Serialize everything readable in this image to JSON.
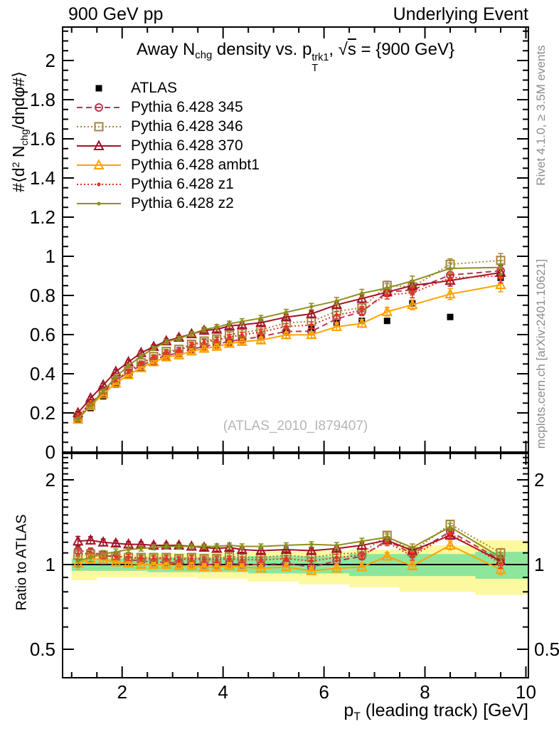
{
  "header": {
    "left": "900 GeV pp",
    "right": "Underlying Event"
  },
  "labels": {
    "title_parts": [
      {
        "t": "Away N"
      },
      {
        "t": "chg",
        "s": "sub"
      },
      {
        "t": " density vs. p"
      },
      {
        "s": "stack",
        "sup": "trk1",
        "sub": "T"
      },
      {
        "t": ", "
      },
      {
        "t": "s",
        "s": "sqrt"
      },
      {
        "t": " = {900 GeV}"
      }
    ],
    "ylabel_parts": [
      {
        "t": "#⟨d"
      },
      {
        "t": "2",
        "s": "sup"
      },
      {
        "t": " N"
      },
      {
        "t": "chg",
        "s": "sub"
      },
      {
        "t": "/dηdφ#⟩"
      }
    ],
    "xlabel_parts": [
      {
        "t": "p"
      },
      {
        "t": "T",
        "s": "sub"
      },
      {
        "t": " (leading track) [GeV]"
      }
    ],
    "ratio_label": "Ratio to ATLAS",
    "watermark": "(ATLAS_2010_I879407)"
  },
  "side_notes": {
    "top": "Rivet 4.1.0, ≥ 3.5M events",
    "bottom": "mcplots.cern.ch [arXiv:2401.10621]"
  },
  "chart_data": {
    "type": "line",
    "title": "Away N_chg density vs. p_T^trk1, sqrt(s) = {900 GeV}",
    "xlabel": "p_T (leading track) [GeV]",
    "ylabel": "#<d2 N_chg/detadphi#>",
    "ratio_label": "Ratio to ATLAS",
    "xlim": [
      0.82,
      10.05
    ],
    "ylim": [
      0,
      2.17
    ],
    "ratio_ylim": [
      0.4,
      2.48
    ],
    "ratio_scale": "log",
    "grid": false,
    "x_ticks": [
      2,
      4,
      6,
      8,
      10
    ],
    "y_ticks": [
      0,
      0.2,
      0.4,
      0.6,
      0.8,
      1,
      1.2,
      1.4,
      1.6,
      1.8,
      2
    ],
    "ratio_ticks": [
      0.5,
      1,
      2
    ],
    "x": [
      1.125,
      1.375,
      1.625,
      1.875,
      2.125,
      2.375,
      2.625,
      2.875,
      3.125,
      3.375,
      3.625,
      3.875,
      4.125,
      4.375,
      4.75,
      5.25,
      5.75,
      6.25,
      6.75,
      7.25,
      7.75,
      8.5,
      9.5
    ],
    "err": [
      0.008,
      0.008,
      0.009,
      0.009,
      0.01,
      0.01,
      0.01,
      0.011,
      0.011,
      0.012,
      0.012,
      0.013,
      0.013,
      0.014,
      0.014,
      0.015,
      0.016,
      0.018,
      0.02,
      0.022,
      0.025,
      0.028,
      0.035
    ],
    "series": [
      {
        "name": "ATLAS",
        "color": "#000000",
        "marker": "square-filled",
        "line": "none",
        "values": [
          0.165,
          0.225,
          0.285,
          0.345,
          0.39,
          0.43,
          0.46,
          0.485,
          0.5,
          0.52,
          0.54,
          0.55,
          0.56,
          0.575,
          0.59,
          0.61,
          0.63,
          0.66,
          0.67,
          0.67,
          0.76,
          0.69,
          0.89
        ]
      },
      {
        "name": "Pythia 6.428 345",
        "color": "#b23a52",
        "marker": "circle-open",
        "line": "dashed",
        "values": [
          0.185,
          0.25,
          0.308,
          0.366,
          0.406,
          0.443,
          0.469,
          0.495,
          0.505,
          0.525,
          0.54,
          0.55,
          0.566,
          0.575,
          0.59,
          0.616,
          0.617,
          0.68,
          0.717,
          0.817,
          0.828,
          0.904,
          0.926
        ],
        "ratio": [
          1.12,
          1.11,
          1.08,
          1.06,
          1.04,
          1.03,
          1.02,
          1.02,
          1.01,
          1.01,
          1.0,
          1.0,
          1.01,
          1.0,
          1.0,
          1.01,
          0.98,
          1.03,
          1.07,
          1.22,
          1.09,
          1.31,
          1.04
        ]
      },
      {
        "name": "Pythia 6.428 346",
        "color": "#a5853c",
        "marker": "square-open",
        "line": "dotted",
        "values": [
          0.178,
          0.245,
          0.308,
          0.369,
          0.413,
          0.456,
          0.488,
          0.514,
          0.525,
          0.551,
          0.567,
          0.578,
          0.599,
          0.61,
          0.625,
          0.659,
          0.668,
          0.719,
          0.737,
          0.851,
          0.844,
          0.959,
          0.979
        ],
        "ratio": [
          1.08,
          1.09,
          1.08,
          1.07,
          1.06,
          1.06,
          1.06,
          1.06,
          1.05,
          1.06,
          1.05,
          1.05,
          1.07,
          1.06,
          1.06,
          1.08,
          1.06,
          1.09,
          1.1,
          1.27,
          1.11,
          1.39,
          1.1
        ]
      },
      {
        "name": "Pythia 6.428 370",
        "color": "#a31226",
        "marker": "triangle-open",
        "line": "solid",
        "values": [
          0.2,
          0.275,
          0.342,
          0.411,
          0.46,
          0.507,
          0.538,
          0.567,
          0.585,
          0.603,
          0.621,
          0.627,
          0.644,
          0.65,
          0.661,
          0.689,
          0.706,
          0.752,
          0.784,
          0.817,
          0.851,
          0.876,
          0.917
        ],
        "ratio": [
          1.21,
          1.22,
          1.2,
          1.19,
          1.18,
          1.18,
          1.17,
          1.17,
          1.17,
          1.16,
          1.15,
          1.14,
          1.15,
          1.13,
          1.12,
          1.13,
          1.12,
          1.14,
          1.17,
          1.22,
          1.12,
          1.27,
          1.03
        ]
      },
      {
        "name": "Pythia 6.428 ambt1",
        "color": "#ffa202",
        "marker": "triangle-open",
        "line": "solid",
        "values": [
          0.167,
          0.236,
          0.296,
          0.352,
          0.394,
          0.43,
          0.46,
          0.485,
          0.495,
          0.515,
          0.529,
          0.539,
          0.554,
          0.564,
          0.572,
          0.598,
          0.599,
          0.64,
          0.657,
          0.717,
          0.752,
          0.807,
          0.854
        ],
        "ratio": [
          1.01,
          1.05,
          1.04,
          1.02,
          1.01,
          1.0,
          1.0,
          1.0,
          0.99,
          0.99,
          0.98,
          0.98,
          0.99,
          0.98,
          0.97,
          0.98,
          0.95,
          0.97,
          0.98,
          1.07,
          0.99,
          1.17,
          0.96
        ]
      },
      {
        "name": "Pythia 6.428 z1",
        "color": "#e63322",
        "marker": "dot-filled",
        "line": "dotted",
        "values": [
          0.18,
          0.248,
          0.308,
          0.369,
          0.413,
          0.452,
          0.483,
          0.509,
          0.52,
          0.546,
          0.562,
          0.572,
          0.588,
          0.598,
          0.614,
          0.641,
          0.649,
          0.7,
          0.724,
          0.804,
          0.813,
          0.89,
          0.899
        ],
        "ratio": [
          1.09,
          1.1,
          1.08,
          1.07,
          1.06,
          1.05,
          1.05,
          1.05,
          1.04,
          1.05,
          1.04,
          1.04,
          1.05,
          1.04,
          1.04,
          1.05,
          1.03,
          1.06,
          1.08,
          1.2,
          1.07,
          1.29,
          1.01
        ]
      },
      {
        "name": "Pythia 6.428 z2",
        "color": "#8f8f1f",
        "marker": "dot-filled",
        "line": "solid",
        "values": [
          0.17,
          0.239,
          0.311,
          0.383,
          0.441,
          0.49,
          0.529,
          0.563,
          0.58,
          0.603,
          0.626,
          0.638,
          0.655,
          0.667,
          0.684,
          0.714,
          0.743,
          0.772,
          0.811,
          0.838,
          0.874,
          0.938,
          0.943
        ],
        "ratio": [
          1.03,
          1.06,
          1.09,
          1.11,
          1.13,
          1.14,
          1.15,
          1.16,
          1.16,
          1.16,
          1.16,
          1.16,
          1.17,
          1.16,
          1.16,
          1.17,
          1.18,
          1.17,
          1.21,
          1.25,
          1.15,
          1.36,
          1.06
        ]
      }
    ],
    "bands": {
      "colors": {
        "yellow": "#fdf9a0",
        "green": "#8ce79c"
      },
      "yellow": [
        {
          "x0": 1.0,
          "x1": 1.5,
          "lo": 0.88,
          "hi": 1.08
        },
        {
          "x0": 1.5,
          "x1": 2.5,
          "lo": 0.9,
          "hi": 1.09
        },
        {
          "x0": 2.5,
          "x1": 3.5,
          "lo": 0.9,
          "hi": 1.1
        },
        {
          "x0": 3.5,
          "x1": 4.5,
          "lo": 0.89,
          "hi": 1.1
        },
        {
          "x0": 4.5,
          "x1": 5.5,
          "lo": 0.87,
          "hi": 1.11
        },
        {
          "x0": 5.5,
          "x1": 6.5,
          "lo": 0.85,
          "hi": 1.12
        },
        {
          "x0": 6.5,
          "x1": 7.5,
          "lo": 0.83,
          "hi": 1.13
        },
        {
          "x0": 7.5,
          "x1": 9.0,
          "lo": 0.8,
          "hi": 1.17
        },
        {
          "x0": 9.0,
          "x1": 10.05,
          "lo": 0.78,
          "hi": 1.22
        }
      ],
      "green": [
        {
          "x0": 1.0,
          "x1": 2.5,
          "lo": 0.95,
          "hi": 1.05
        },
        {
          "x0": 2.5,
          "x1": 4.5,
          "lo": 0.94,
          "hi": 1.06
        },
        {
          "x0": 4.5,
          "x1": 6.5,
          "lo": 0.93,
          "hi": 1.07
        },
        {
          "x0": 6.5,
          "x1": 9.0,
          "lo": 0.91,
          "hi": 1.09
        },
        {
          "x0": 9.0,
          "x1": 10.05,
          "lo": 0.89,
          "hi": 1.11
        }
      ]
    }
  }
}
